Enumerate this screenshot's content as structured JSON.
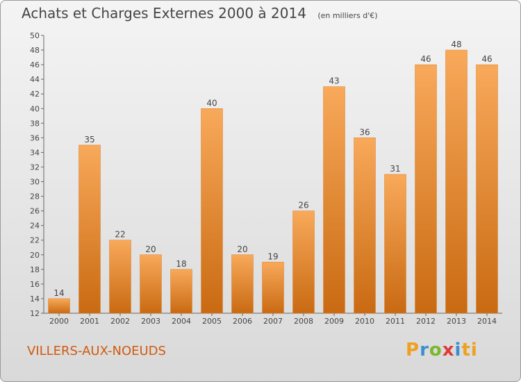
{
  "title": "Achats et Charges Externes 2000 à 2014",
  "subtitle": "(en milliers d'€)",
  "town": "VILLERS-AUX-NOEUDS",
  "logo": "Proxiti",
  "colors": {
    "bar_light": "#f8a95a",
    "bar_dark": "#c96a12",
    "town": "#d05a10"
  },
  "chart_data": {
    "type": "bar",
    "categories": [
      "2000",
      "2001",
      "2002",
      "2003",
      "2004",
      "2005",
      "2006",
      "2007",
      "2008",
      "2009",
      "2010",
      "2011",
      "2012",
      "2013",
      "2014"
    ],
    "values": [
      14,
      35,
      22,
      20,
      18,
      40,
      20,
      19,
      26,
      43,
      36,
      31,
      46,
      48,
      46
    ],
    "ylim": [
      12,
      50
    ],
    "yticks": [
      12,
      14,
      16,
      18,
      20,
      22,
      24,
      26,
      28,
      30,
      32,
      34,
      36,
      38,
      40,
      42,
      44,
      46,
      48,
      50
    ],
    "grid": false,
    "data_labels": true
  }
}
